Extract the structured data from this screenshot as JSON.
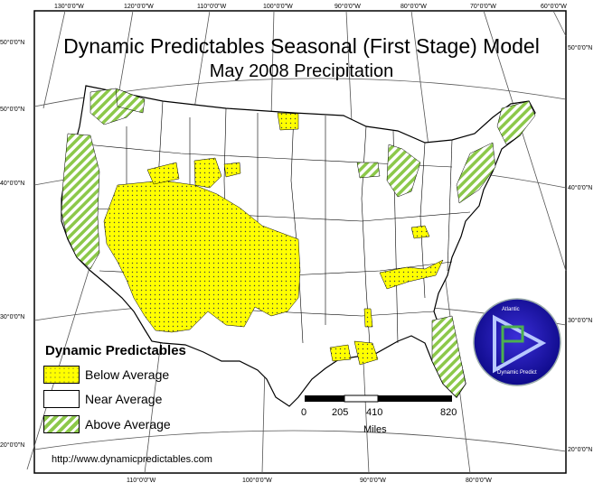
{
  "map": {
    "title": "Dynamic Predictables Seasonal (First Stage) Model",
    "subtitle": "May 2008 Precipitation",
    "url": "http://www.dynamicpredictables.com"
  },
  "graticule": {
    "top_lon": [
      "130°0'0\"W",
      "120°0'0\"W",
      "110°0'0\"W",
      "100°0'0\"W",
      "90°0'0\"W",
      "80°0'0\"W",
      "70°0'0\"W",
      "60°0'0\"W"
    ],
    "bottom_lon": [
      "110°0'0\"W",
      "100°0'0\"W",
      "90°0'0\"W",
      "80°0'0\"W"
    ],
    "left_lat": [
      "50°0'0\"N",
      "50°0'0\"N",
      "40°0'0\"N",
      "30°0'0\"N",
      "20°0'0\"N"
    ],
    "right_lat": [
      "50°0'0\"N",
      "40°0'0\"N",
      "30°0'0\"N",
      "20°0'0\"N"
    ]
  },
  "legend": {
    "title": "Dynamic Predictables",
    "items": [
      {
        "label": "Below Average",
        "color": "#ffff00"
      },
      {
        "label": "Near Average",
        "color": "#ffffff"
      },
      {
        "label": "Above Average",
        "color": "#8cc84a"
      }
    ]
  },
  "scale": {
    "labels": [
      "0",
      "205",
      "410",
      "820"
    ],
    "unit": "Miles"
  },
  "logo": {
    "top_text": "Atlantic",
    "bottom_text": "Dynamic Predict"
  }
}
